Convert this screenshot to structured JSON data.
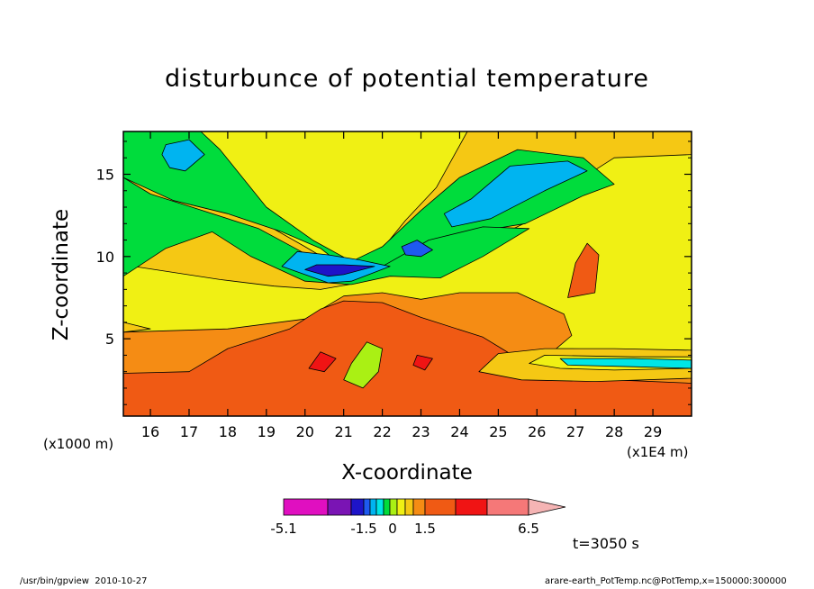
{
  "chart_data": {
    "type": "heatmap",
    "title": "disturbunce of potential temperature",
    "xlabel": "X-coordinate",
    "ylabel": "Z-coordinate",
    "x_unit_left": "(x1000 m)",
    "x_unit_right": "(x1E4 m)",
    "xlim": [
      15.3,
      30.0
    ],
    "ylim": [
      0.3,
      17.6
    ],
    "x_ticks": [
      16,
      17,
      18,
      19,
      20,
      21,
      22,
      23,
      24,
      25,
      26,
      27,
      28,
      29
    ],
    "y_ticks": [
      5,
      10,
      15
    ],
    "time_label": "t=3050 s",
    "colorbar": {
      "levels": [
        -5.1,
        -4.0,
        -3.0,
        -2.0,
        -1.5,
        -1.0,
        -0.5,
        0,
        0.5,
        1.0,
        1.5,
        2.5,
        3.5,
        5.0,
        6.5
      ],
      "colors": [
        "#e00fc0",
        "#7a14b4",
        "#1e14c8",
        "#1e5af0",
        "#00b4f0",
        "#00e6e6",
        "#00dc3c",
        "#aaf014",
        "#f0f014",
        "#f5c814",
        "#f58c14",
        "#f05a14",
        "#f01414",
        "#f57878",
        "#f5b4b4"
      ],
      "tick_labels": [
        "-5.1",
        "-1.5",
        "0",
        "1.5",
        "6.5"
      ]
    },
    "regions": [
      {
        "level": 0.5,
        "points": [
          [
            15.3,
            17.6
          ],
          [
            30,
            17.6
          ],
          [
            30,
            0.3
          ],
          [
            15.3,
            0.3
          ]
        ]
      },
      {
        "level": 1.5,
        "points": [
          [
            15.3,
            5.4
          ],
          [
            18,
            5.6
          ],
          [
            20,
            6.2
          ],
          [
            21,
            7.6
          ],
          [
            22,
            7.8
          ],
          [
            23,
            7.4
          ],
          [
            24,
            7.8
          ],
          [
            25.5,
            7.8
          ],
          [
            26.7,
            6.5
          ],
          [
            26.9,
            5.2
          ],
          [
            26.5,
            4.4
          ],
          [
            30,
            4.3
          ],
          [
            30,
            0.3
          ],
          [
            15.3,
            0.3
          ]
        ]
      },
      {
        "level": 2.5,
        "points": [
          [
            15.3,
            2.9
          ],
          [
            17,
            3.0
          ],
          [
            18,
            4.4
          ],
          [
            19.6,
            5.6
          ],
          [
            20.4,
            6.8
          ],
          [
            21,
            7.3
          ],
          [
            22,
            7.2
          ],
          [
            23,
            6.3
          ],
          [
            24.6,
            5.1
          ],
          [
            25.3,
            4.1
          ],
          [
            26,
            3.0
          ],
          [
            28,
            2.5
          ],
          [
            30,
            2.3
          ],
          [
            30,
            0.3
          ],
          [
            15.3,
            0.3
          ]
        ]
      },
      {
        "level": 2.5,
        "points": [
          [
            26.8,
            7.5
          ],
          [
            27.0,
            9.6
          ],
          [
            27.3,
            10.8
          ],
          [
            27.6,
            10.1
          ],
          [
            27.5,
            7.8
          ]
        ]
      },
      {
        "level": 3.5,
        "points": [
          [
            20.4,
            4.2
          ],
          [
            20.8,
            3.8
          ],
          [
            20.5,
            3.0
          ],
          [
            20.1,
            3.2
          ]
        ]
      },
      {
        "level": 3.5,
        "points": [
          [
            22.9,
            4.0
          ],
          [
            23.3,
            3.8
          ],
          [
            23.1,
            3.1
          ],
          [
            22.8,
            3.4
          ]
        ]
      },
      {
        "level": 1.0,
        "points": [
          [
            15.3,
            17.6
          ],
          [
            16.6,
            17.6
          ],
          [
            17.4,
            15.4
          ],
          [
            18.8,
            12.2
          ],
          [
            20.0,
            10.6
          ],
          [
            21.0,
            9.2
          ],
          [
            21.7,
            9.6
          ],
          [
            22.6,
            12.2
          ],
          [
            23.4,
            14.2
          ],
          [
            24.2,
            17.6
          ],
          [
            30,
            17.6
          ],
          [
            30,
            16.2
          ],
          [
            28.0,
            16.0
          ],
          [
            27.0,
            14.5
          ],
          [
            26.0,
            12.4
          ],
          [
            24.8,
            11.0
          ],
          [
            23.4,
            10.6
          ],
          [
            22.5,
            9.6
          ],
          [
            21.4,
            8.4
          ],
          [
            20.4,
            8.0
          ],
          [
            19.2,
            8.2
          ],
          [
            17.8,
            8.6
          ],
          [
            15.3,
            9.5
          ]
        ]
      },
      {
        "level": 1.0,
        "points": [
          [
            25.0,
            4.1
          ],
          [
            26.2,
            4.4
          ],
          [
            28.0,
            4.4
          ],
          [
            30,
            4.3
          ],
          [
            30,
            2.6
          ],
          [
            27.5,
            2.4
          ],
          [
            25.6,
            2.5
          ],
          [
            24.5,
            3.0
          ]
        ]
      },
      {
        "level": -0.5,
        "points": [
          [
            15.3,
            14.8
          ],
          [
            16.6,
            13.4
          ],
          [
            18.0,
            12.6
          ],
          [
            19.4,
            11.5
          ],
          [
            20.4,
            10.5
          ],
          [
            21.0,
            9.4
          ],
          [
            21.5,
            9.3
          ],
          [
            22.4,
            9.4
          ],
          [
            23.2,
            9.9
          ],
          [
            24.4,
            11.5
          ],
          [
            25.7,
            12.0
          ],
          [
            27.2,
            13.7
          ],
          [
            28.0,
            14.4
          ],
          [
            27.2,
            16.0
          ],
          [
            25.5,
            16.5
          ],
          [
            24.0,
            14.8
          ],
          [
            23.0,
            12.8
          ],
          [
            22.0,
            10.6
          ],
          [
            21.2,
            9.7
          ],
          [
            20.2,
            11.0
          ],
          [
            19.0,
            13.0
          ],
          [
            17.8,
            16.5
          ],
          [
            17.3,
            17.6
          ],
          [
            15.3,
            17.6
          ]
        ]
      },
      {
        "level": -0.5,
        "points": [
          [
            15.3,
            14.8
          ],
          [
            15.3,
            8.8
          ],
          [
            16.4,
            10.5
          ],
          [
            17.6,
            11.5
          ],
          [
            18.6,
            10.0
          ],
          [
            20.0,
            8.5
          ],
          [
            21.2,
            8.3
          ],
          [
            22.2,
            8.8
          ],
          [
            23.5,
            8.7
          ],
          [
            24.6,
            10.0
          ],
          [
            25.8,
            11.7
          ],
          [
            24.6,
            11.8
          ],
          [
            23.2,
            11.0
          ],
          [
            22.0,
            9.4
          ],
          [
            20.9,
            9.2
          ],
          [
            19.9,
            10.3
          ],
          [
            18.8,
            11.7
          ],
          [
            17.2,
            12.9
          ],
          [
            16.0,
            13.8
          ]
        ]
      },
      {
        "level": 0.5,
        "points": [
          [
            26.2,
            4.0
          ],
          [
            28.5,
            3.9
          ],
          [
            30,
            3.9
          ],
          [
            30,
            3.2
          ],
          [
            28.0,
            3.1
          ],
          [
            26.6,
            3.2
          ],
          [
            25.8,
            3.5
          ]
        ]
      },
      {
        "level": -1.0,
        "points": [
          [
            26.6,
            3.8
          ],
          [
            28.5,
            3.8
          ],
          [
            30,
            3.7
          ],
          [
            30,
            3.2
          ],
          [
            28.5,
            3.3
          ],
          [
            26.8,
            3.4
          ]
        ]
      },
      {
        "level": -1.5,
        "points": [
          [
            16.4,
            16.8
          ],
          [
            17.0,
            17.1
          ],
          [
            17.4,
            16.2
          ],
          [
            16.9,
            15.2
          ],
          [
            16.5,
            15.4
          ],
          [
            16.3,
            16.2
          ]
        ]
      },
      {
        "level": -1.5,
        "points": [
          [
            23.8,
            11.8
          ],
          [
            24.8,
            12.3
          ],
          [
            26.2,
            14.0
          ],
          [
            27.3,
            15.2
          ],
          [
            26.8,
            15.8
          ],
          [
            25.3,
            15.5
          ],
          [
            24.3,
            13.5
          ],
          [
            23.6,
            12.6
          ]
        ]
      },
      {
        "level": -1.5,
        "points": [
          [
            19.4,
            9.4
          ],
          [
            20.6,
            8.4
          ],
          [
            21.2,
            8.5
          ],
          [
            22.2,
            9.4
          ],
          [
            21.4,
            9.8
          ],
          [
            20.6,
            10.1
          ],
          [
            19.8,
            10.3
          ]
        ]
      },
      {
        "level": -2.0,
        "points": [
          [
            22.5,
            10.6
          ],
          [
            22.9,
            11.0
          ],
          [
            23.3,
            10.4
          ],
          [
            23.0,
            10.0
          ],
          [
            22.6,
            10.1
          ]
        ]
      },
      {
        "level": -3.0,
        "points": [
          [
            20.0,
            9.2
          ],
          [
            20.6,
            8.8
          ],
          [
            21.0,
            8.9
          ],
          [
            21.8,
            9.4
          ],
          [
            21.0,
            9.5
          ],
          [
            20.3,
            9.5
          ]
        ]
      },
      {
        "level": 0.0,
        "points": [
          [
            21.6,
            4.8
          ],
          [
            22.0,
            4.4
          ],
          [
            21.9,
            3.0
          ],
          [
            21.5,
            2.0
          ],
          [
            21.0,
            2.5
          ],
          [
            21.2,
            3.5
          ]
        ]
      },
      {
        "level": 1.0,
        "points": [
          [
            15.3,
            5.4
          ],
          [
            15.3,
            6.0
          ],
          [
            16.0,
            5.6
          ]
        ]
      }
    ]
  }
}
